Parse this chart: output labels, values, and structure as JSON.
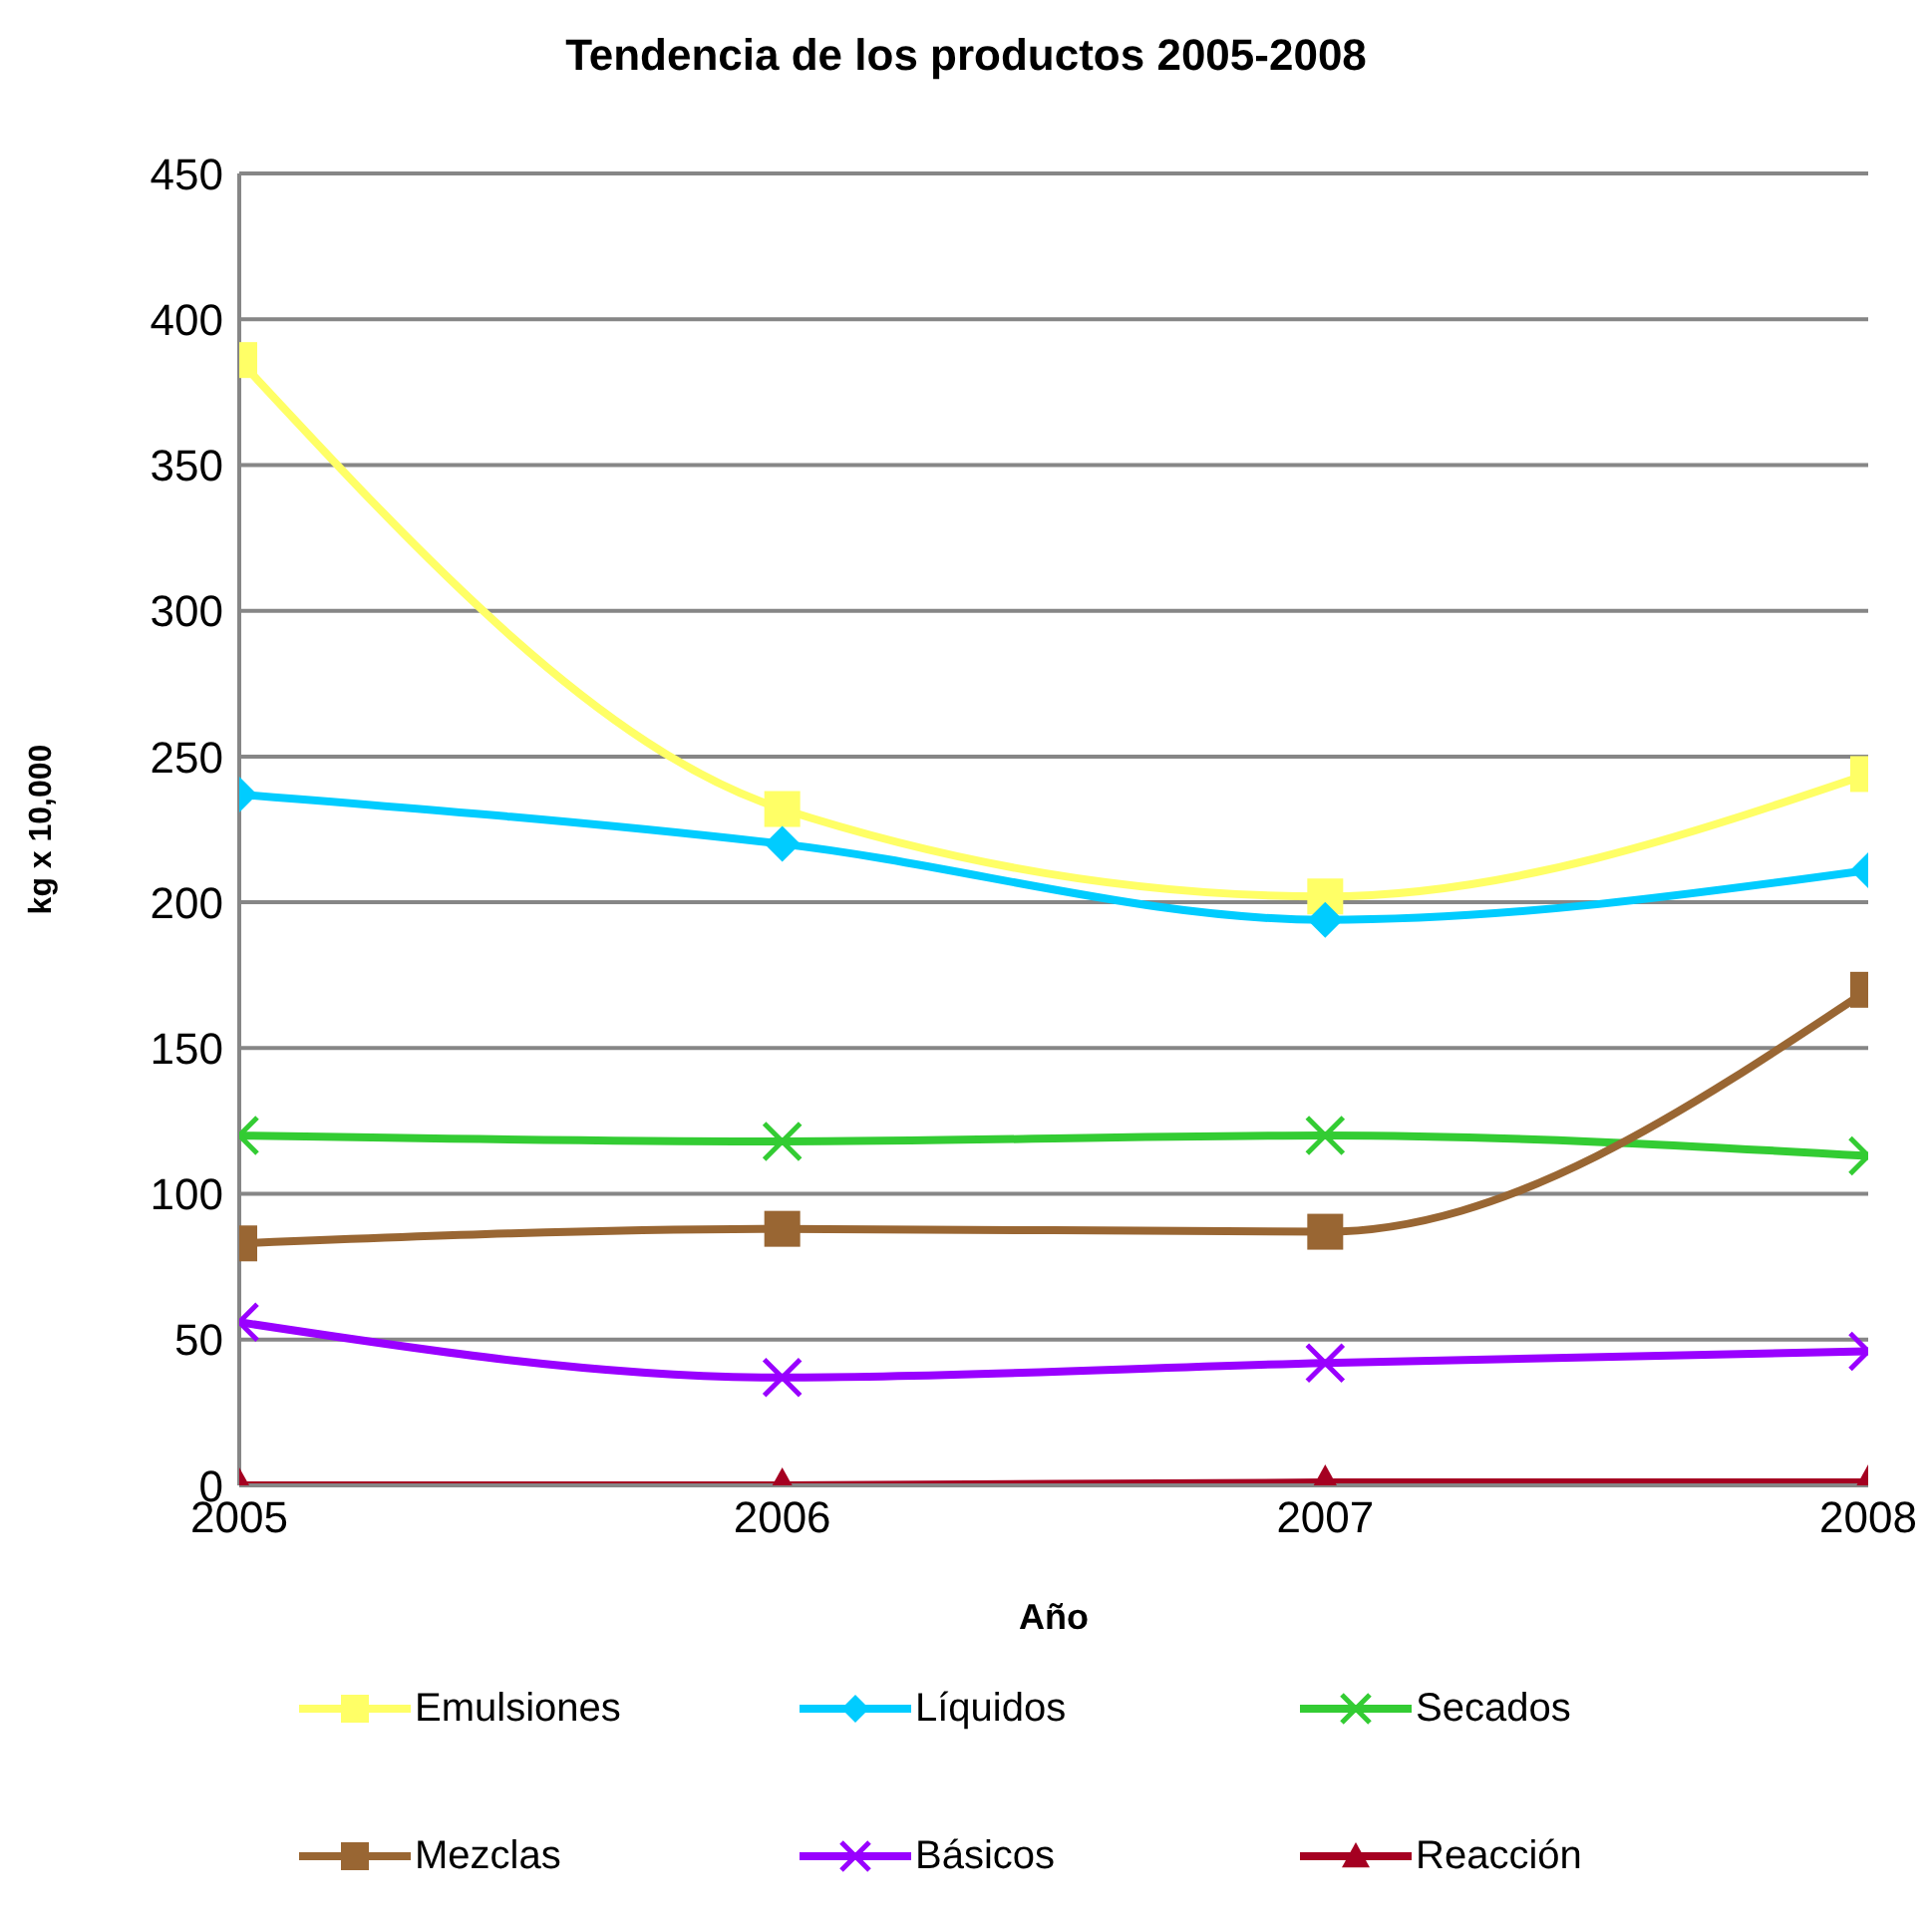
{
  "chart_data": {
    "type": "line",
    "title": "Tendencia de los productos 2005-2008",
    "xlabel": "Año",
    "ylabel": "kg x 10,000",
    "x": [
      2005,
      2006,
      2007,
      2008
    ],
    "xlim": [
      2005,
      2008
    ],
    "xticks": [
      2005,
      2006,
      2007,
      2008
    ],
    "ylim": [
      0,
      450
    ],
    "yticks": [
      0,
      50,
      100,
      150,
      200,
      250,
      300,
      350,
      400,
      450
    ],
    "grid": "y",
    "legend": "bottom",
    "series": [
      {
        "name": "Emulsiones",
        "color": "#ffff66",
        "marker": "square",
        "values": [
          386,
          232,
          202,
          244
        ]
      },
      {
        "name": "Líquidos",
        "color": "#00ccff",
        "marker": "diamond",
        "values": [
          237,
          220,
          194,
          211
        ]
      },
      {
        "name": "Secados",
        "color": "#33cc33",
        "marker": "cross",
        "values": [
          120,
          118,
          120,
          113
        ]
      },
      {
        "name": "Mezclas",
        "color": "#996633",
        "marker": "square",
        "values": [
          83,
          88,
          87,
          170
        ]
      },
      {
        "name": "Básicos",
        "color": "#9900ff",
        "marker": "cross",
        "values": [
          56,
          37,
          42,
          46
        ]
      },
      {
        "name": "Reacción",
        "color": "#a50021",
        "marker": "triangle",
        "values": [
          0,
          0,
          1,
          1
        ]
      }
    ]
  }
}
